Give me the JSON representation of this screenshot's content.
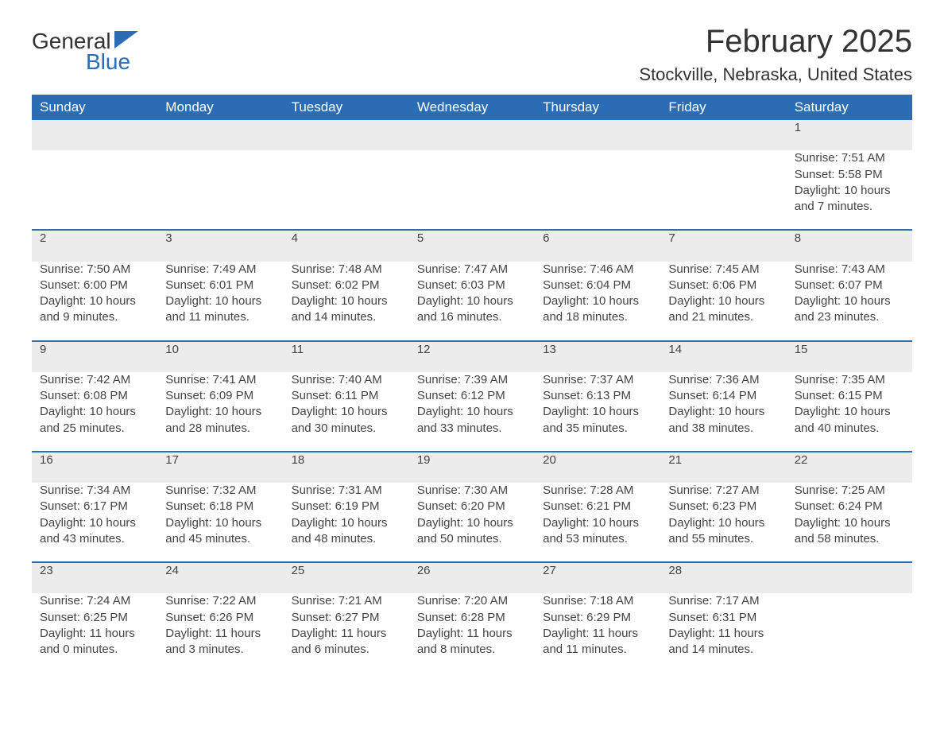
{
  "logo": {
    "line1": "General",
    "line2": "Blue"
  },
  "title": "February 2025",
  "location": "Stockville, Nebraska, United States",
  "colors": {
    "header_bg": "#2a6db5",
    "header_text": "#ffffff",
    "daynum_bg": "#ececec",
    "row_border": "#2a6db5",
    "body_text": "#444444",
    "logo_accent": "#2a6db5"
  },
  "weekdays": [
    "Sunday",
    "Monday",
    "Tuesday",
    "Wednesday",
    "Thursday",
    "Friday",
    "Saturday"
  ],
  "weeks": [
    [
      null,
      null,
      null,
      null,
      null,
      null,
      {
        "day": "1",
        "sunrise": "Sunrise: 7:51 AM",
        "sunset": "Sunset: 5:58 PM",
        "daylight": "Daylight: 10 hours and 7 minutes."
      }
    ],
    [
      {
        "day": "2",
        "sunrise": "Sunrise: 7:50 AM",
        "sunset": "Sunset: 6:00 PM",
        "daylight": "Daylight: 10 hours and 9 minutes."
      },
      {
        "day": "3",
        "sunrise": "Sunrise: 7:49 AM",
        "sunset": "Sunset: 6:01 PM",
        "daylight": "Daylight: 10 hours and 11 minutes."
      },
      {
        "day": "4",
        "sunrise": "Sunrise: 7:48 AM",
        "sunset": "Sunset: 6:02 PM",
        "daylight": "Daylight: 10 hours and 14 minutes."
      },
      {
        "day": "5",
        "sunrise": "Sunrise: 7:47 AM",
        "sunset": "Sunset: 6:03 PM",
        "daylight": "Daylight: 10 hours and 16 minutes."
      },
      {
        "day": "6",
        "sunrise": "Sunrise: 7:46 AM",
        "sunset": "Sunset: 6:04 PM",
        "daylight": "Daylight: 10 hours and 18 minutes."
      },
      {
        "day": "7",
        "sunrise": "Sunrise: 7:45 AM",
        "sunset": "Sunset: 6:06 PM",
        "daylight": "Daylight: 10 hours and 21 minutes."
      },
      {
        "day": "8",
        "sunrise": "Sunrise: 7:43 AM",
        "sunset": "Sunset: 6:07 PM",
        "daylight": "Daylight: 10 hours and 23 minutes."
      }
    ],
    [
      {
        "day": "9",
        "sunrise": "Sunrise: 7:42 AM",
        "sunset": "Sunset: 6:08 PM",
        "daylight": "Daylight: 10 hours and 25 minutes."
      },
      {
        "day": "10",
        "sunrise": "Sunrise: 7:41 AM",
        "sunset": "Sunset: 6:09 PM",
        "daylight": "Daylight: 10 hours and 28 minutes."
      },
      {
        "day": "11",
        "sunrise": "Sunrise: 7:40 AM",
        "sunset": "Sunset: 6:11 PM",
        "daylight": "Daylight: 10 hours and 30 minutes."
      },
      {
        "day": "12",
        "sunrise": "Sunrise: 7:39 AM",
        "sunset": "Sunset: 6:12 PM",
        "daylight": "Daylight: 10 hours and 33 minutes."
      },
      {
        "day": "13",
        "sunrise": "Sunrise: 7:37 AM",
        "sunset": "Sunset: 6:13 PM",
        "daylight": "Daylight: 10 hours and 35 minutes."
      },
      {
        "day": "14",
        "sunrise": "Sunrise: 7:36 AM",
        "sunset": "Sunset: 6:14 PM",
        "daylight": "Daylight: 10 hours and 38 minutes."
      },
      {
        "day": "15",
        "sunrise": "Sunrise: 7:35 AM",
        "sunset": "Sunset: 6:15 PM",
        "daylight": "Daylight: 10 hours and 40 minutes."
      }
    ],
    [
      {
        "day": "16",
        "sunrise": "Sunrise: 7:34 AM",
        "sunset": "Sunset: 6:17 PM",
        "daylight": "Daylight: 10 hours and 43 minutes."
      },
      {
        "day": "17",
        "sunrise": "Sunrise: 7:32 AM",
        "sunset": "Sunset: 6:18 PM",
        "daylight": "Daylight: 10 hours and 45 minutes."
      },
      {
        "day": "18",
        "sunrise": "Sunrise: 7:31 AM",
        "sunset": "Sunset: 6:19 PM",
        "daylight": "Daylight: 10 hours and 48 minutes."
      },
      {
        "day": "19",
        "sunrise": "Sunrise: 7:30 AM",
        "sunset": "Sunset: 6:20 PM",
        "daylight": "Daylight: 10 hours and 50 minutes."
      },
      {
        "day": "20",
        "sunrise": "Sunrise: 7:28 AM",
        "sunset": "Sunset: 6:21 PM",
        "daylight": "Daylight: 10 hours and 53 minutes."
      },
      {
        "day": "21",
        "sunrise": "Sunrise: 7:27 AM",
        "sunset": "Sunset: 6:23 PM",
        "daylight": "Daylight: 10 hours and 55 minutes."
      },
      {
        "day": "22",
        "sunrise": "Sunrise: 7:25 AM",
        "sunset": "Sunset: 6:24 PM",
        "daylight": "Daylight: 10 hours and 58 minutes."
      }
    ],
    [
      {
        "day": "23",
        "sunrise": "Sunrise: 7:24 AM",
        "sunset": "Sunset: 6:25 PM",
        "daylight": "Daylight: 11 hours and 0 minutes."
      },
      {
        "day": "24",
        "sunrise": "Sunrise: 7:22 AM",
        "sunset": "Sunset: 6:26 PM",
        "daylight": "Daylight: 11 hours and 3 minutes."
      },
      {
        "day": "25",
        "sunrise": "Sunrise: 7:21 AM",
        "sunset": "Sunset: 6:27 PM",
        "daylight": "Daylight: 11 hours and 6 minutes."
      },
      {
        "day": "26",
        "sunrise": "Sunrise: 7:20 AM",
        "sunset": "Sunset: 6:28 PM",
        "daylight": "Daylight: 11 hours and 8 minutes."
      },
      {
        "day": "27",
        "sunrise": "Sunrise: 7:18 AM",
        "sunset": "Sunset: 6:29 PM",
        "daylight": "Daylight: 11 hours and 11 minutes."
      },
      {
        "day": "28",
        "sunrise": "Sunrise: 7:17 AM",
        "sunset": "Sunset: 6:31 PM",
        "daylight": "Daylight: 11 hours and 14 minutes."
      },
      null
    ]
  ]
}
